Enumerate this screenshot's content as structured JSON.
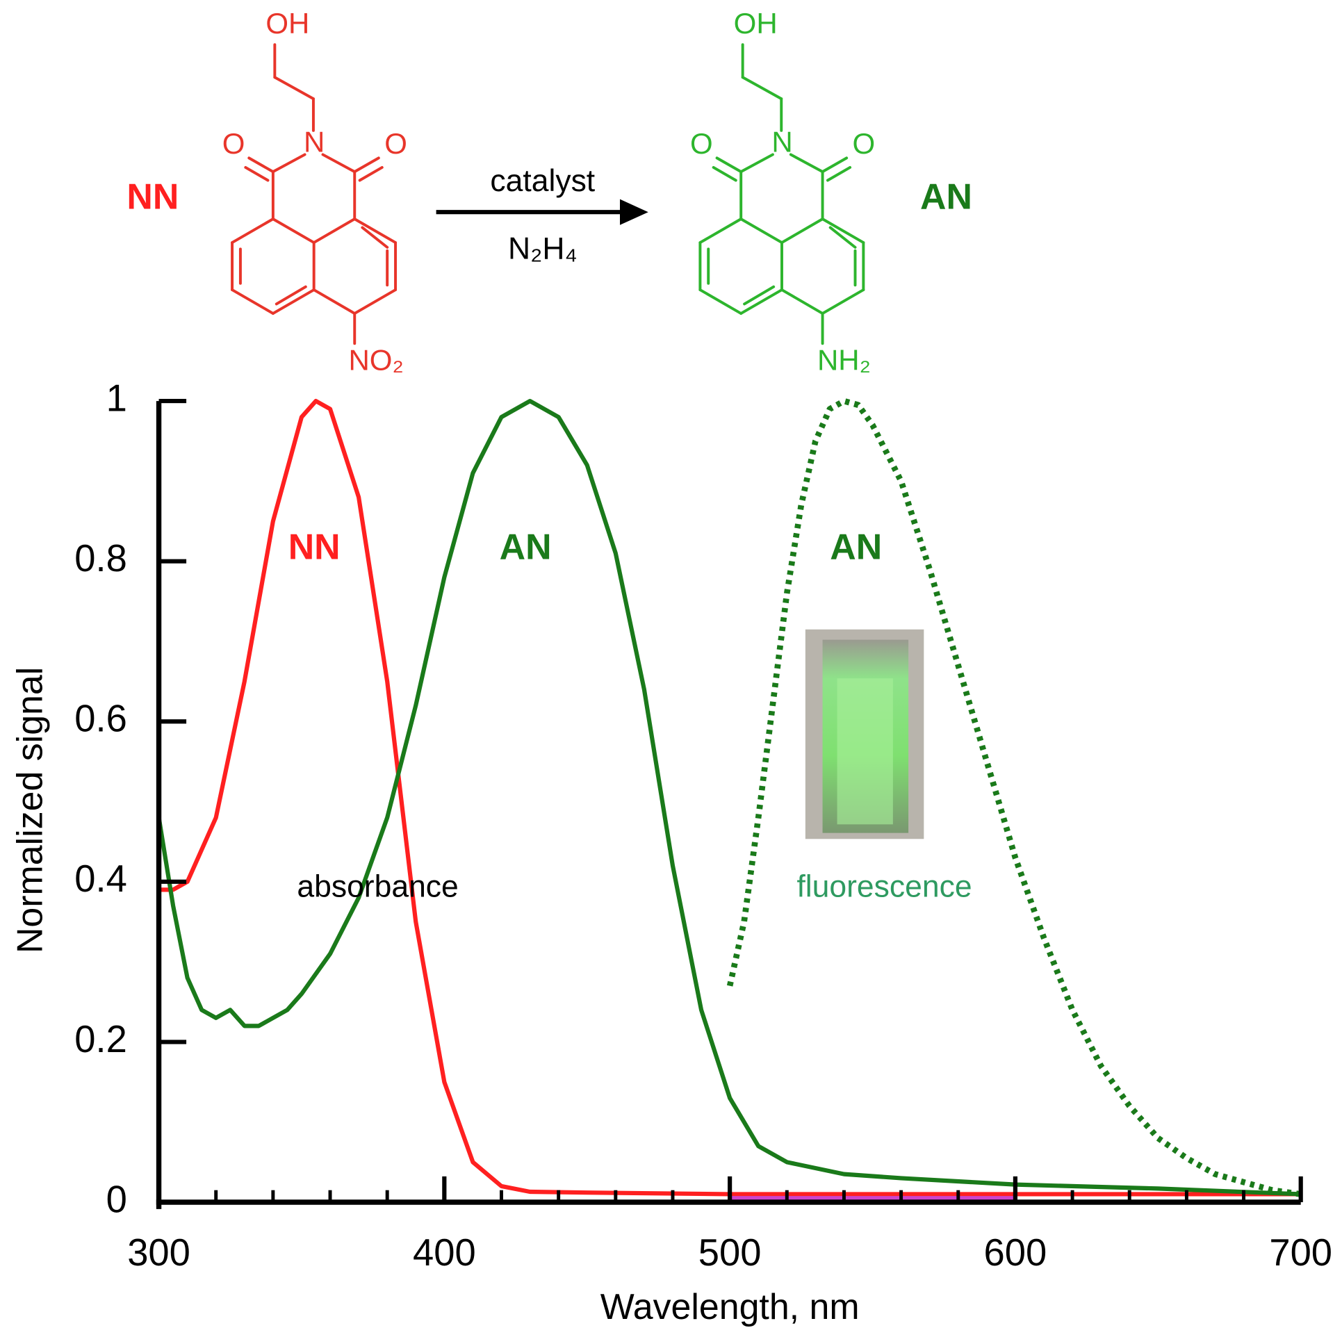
{
  "scheme": {
    "reactant_label": "NN",
    "product_label": "AN",
    "reagent_top": "catalyst",
    "reagent_bottom": "N₂H₄",
    "reactant_atoms": {
      "hydroxyl": "OH",
      "oxygen_left": "O",
      "nitrogen": "N",
      "oxygen_right": "O",
      "substituent": "NO₂"
    },
    "product_atoms": {
      "hydroxyl": "OH",
      "oxygen_left": "O",
      "nitrogen": "N",
      "oxygen_right": "O",
      "substituent": "NH₂"
    }
  },
  "chart_data": {
    "type": "line",
    "xlabel": "Wavelength, nm",
    "ylabel": "Normalized signal",
    "xlim": [
      300,
      700
    ],
    "ylim": [
      0,
      1
    ],
    "xticks": [
      300,
      400,
      500,
      600,
      700
    ],
    "yticks": [
      0,
      0.2,
      0.4,
      0.6,
      0.8,
      1
    ],
    "annotations": [
      "NN",
      "AN",
      "AN",
      "absorbance",
      "fluorescence"
    ],
    "series": [
      {
        "color": "#ff2020",
        "style": "solid",
        "x": [
          300,
          305,
          310,
          320,
          330,
          340,
          350,
          355,
          360,
          370,
          380,
          390,
          400,
          410,
          420,
          430,
          450,
          500,
          600,
          700
        ],
        "values": [
          0.39,
          0.39,
          0.4,
          0.48,
          0.65,
          0.85,
          0.98,
          1.0,
          0.99,
          0.88,
          0.65,
          0.35,
          0.15,
          0.05,
          0.02,
          0.013,
          0.012,
          0.01,
          0.01,
          0.01
        ]
      },
      {
        "color": "#1a7a1a",
        "style": "solid",
        "x": [
          300,
          305,
          310,
          315,
          320,
          325,
          330,
          335,
          340,
          345,
          350,
          360,
          370,
          380,
          390,
          400,
          410,
          420,
          430,
          440,
          450,
          460,
          470,
          480,
          490,
          500,
          510,
          520,
          540,
          560,
          600,
          650,
          700
        ],
        "values": [
          0.48,
          0.37,
          0.28,
          0.24,
          0.23,
          0.24,
          0.22,
          0.22,
          0.23,
          0.24,
          0.26,
          0.31,
          0.38,
          0.48,
          0.62,
          0.78,
          0.91,
          0.98,
          1.0,
          0.98,
          0.92,
          0.81,
          0.64,
          0.42,
          0.24,
          0.13,
          0.07,
          0.05,
          0.035,
          0.03,
          0.022,
          0.017,
          0.01
        ]
      },
      {
        "color": "#1a7a1a",
        "style": "dotted",
        "x": [
          500,
          505,
          510,
          515,
          520,
          525,
          530,
          535,
          540,
          545,
          550,
          560,
          570,
          580,
          590,
          600,
          610,
          620,
          630,
          640,
          650,
          660,
          670,
          680,
          690,
          700
        ],
        "values": [
          0.27,
          0.35,
          0.48,
          0.62,
          0.76,
          0.87,
          0.95,
          0.99,
          1.0,
          0.995,
          0.97,
          0.9,
          0.79,
          0.67,
          0.55,
          0.43,
          0.33,
          0.24,
          0.17,
          0.12,
          0.08,
          0.055,
          0.035,
          0.025,
          0.015,
          0.01
        ]
      },
      {
        "color": "#cc44cc",
        "style": "solid",
        "x": [
          500,
          600
        ],
        "values": [
          0.005,
          0.005
        ]
      }
    ]
  }
}
